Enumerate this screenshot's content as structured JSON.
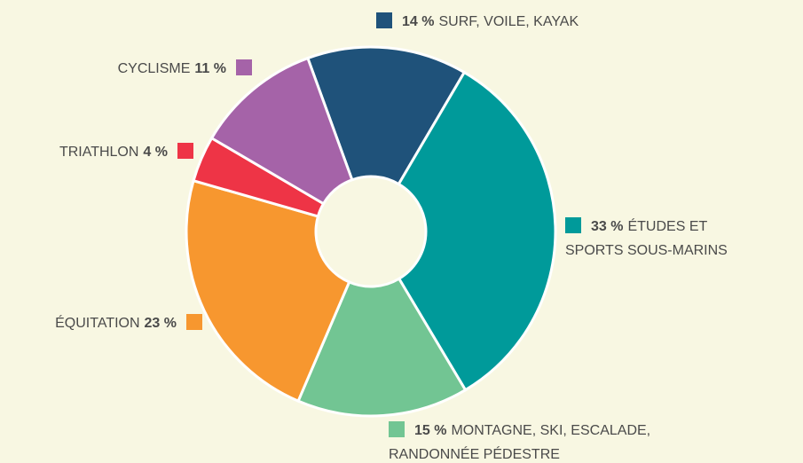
{
  "chart_data": {
    "type": "donut",
    "categories": [
      "SURF, VOILE, KAYAK",
      "ÉTUDES ET\nSPORTS SOUS-MARINS",
      "MONTAGNE, SKI, ESCALADE,\nRANDONNÉE PÉDESTRE",
      "ÉQUITATION",
      "TRIATHLON",
      "CYCLISME"
    ],
    "values": [
      14,
      33,
      15,
      23,
      4,
      11
    ],
    "value_labels": [
      "14 %",
      "33 %",
      "15 %",
      "23 %",
      "4 %",
      "11 %"
    ],
    "colors": [
      "#1f527a",
      "#009a9a",
      "#72c593",
      "#f7972f",
      "#ee3446",
      "#a563a8"
    ]
  }
}
